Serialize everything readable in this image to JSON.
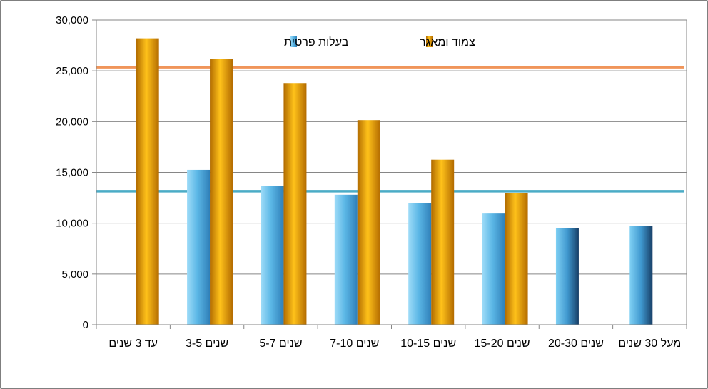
{
  "chart_data": {
    "type": "bar",
    "categories": [
      "עד 3 שנים",
      "3-5 שנים",
      "5-7 שנים",
      "7-10 שנים",
      "10-15 שנים",
      "15-20 שנים",
      "20-30 שנים",
      "מעל 30 שנים"
    ],
    "series": [
      {
        "name": "בעלות פרטית",
        "values": [
          null,
          15250,
          13650,
          12800,
          11950,
          10950,
          9550,
          9750
        ],
        "color": "#5bb7e6"
      },
      {
        "name": "צמוד ומאגר",
        "values": [
          28200,
          26200,
          23800,
          20150,
          16250,
          12950,
          null,
          null
        ],
        "color": "#e3a100"
      }
    ],
    "reference_lines": [
      {
        "value": 25350,
        "color": "#f0955a"
      },
      {
        "value": 13150,
        "color": "#4bacc6"
      }
    ],
    "ylim": [
      0,
      30000
    ],
    "yticks": [
      "0",
      "5,000",
      "10,000",
      "15,000",
      "20,000",
      "25,000",
      "30,000"
    ],
    "grid": true,
    "legend": "top-center",
    "title": "",
    "xlabel": "",
    "ylabel": ""
  }
}
